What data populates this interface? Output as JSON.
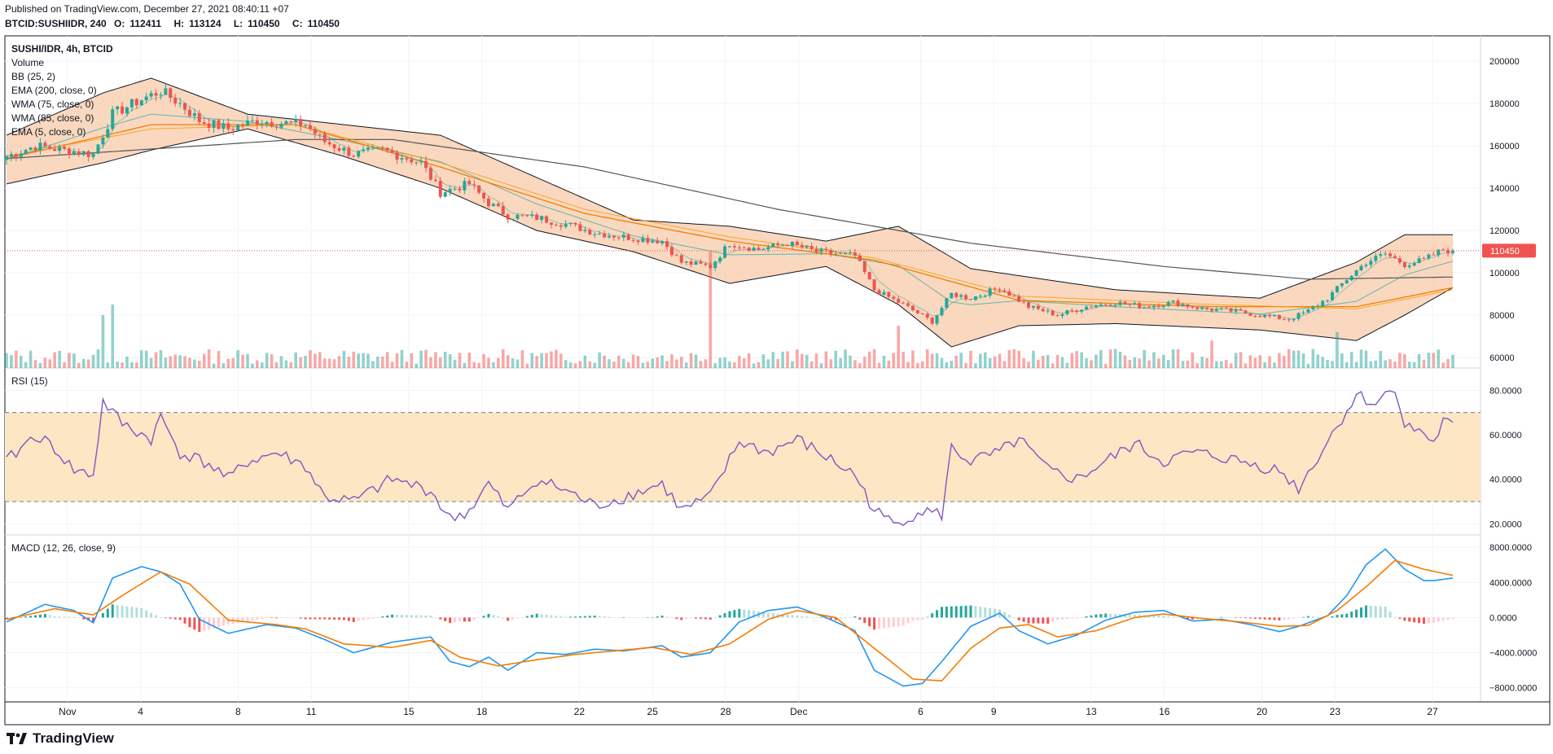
{
  "header": {
    "published": "Published on TradingView.com, December 27, 2021 08:40:11 +07",
    "symbol_line": "BTCID:SUSHIIDR, 240",
    "ohlc": [
      {
        "k": "O:",
        "v": "112411"
      },
      {
        "k": "H:",
        "v": "113124"
      },
      {
        "k": "L:",
        "v": "110450"
      },
      {
        "k": "C:",
        "v": "110450"
      }
    ]
  },
  "legend": {
    "title": "SUSHI/IDR, 4h, BTCID",
    "items": [
      "Volume",
      "BB (25, 2)",
      "EMA (200, close, 0)",
      "WMA (75, close, 0)",
      "WMA (85, close, 0)",
      "EMA (5, close, 0)"
    ]
  },
  "rsi_label": "RSI (15)",
  "macd_label": "MACD (12, 26, close, 9)",
  "last_price_label": "110450",
  "footer": {
    "brand": "TradingView"
  },
  "colors": {
    "up": "#26a69a",
    "down": "#ef5350",
    "bb_fill": "#f7cbaa",
    "rsi_band": "#fde6c4",
    "rsi_line": "#7e57c2",
    "macd": "#2196f3",
    "signal": "#f57c00",
    "ema200": "#555555"
  },
  "chart_data": [
    {
      "type": "candlestick",
      "title": "SUSHI/IDR, 4h, BTCID",
      "ylim": [
        55000,
        212000
      ],
      "y_ticks": [
        200000,
        180000,
        160000,
        140000,
        120000,
        100000,
        80000,
        60000
      ],
      "y_tick_labels": [
        "200000",
        "180000",
        "160000",
        "140000",
        "120000",
        "100000",
        "80000",
        "60000"
      ],
      "x_ticks": [
        "Nov",
        "4",
        "8",
        "11",
        "15",
        "18",
        "22",
        "25",
        "28",
        "Dec",
        "6",
        "9",
        "13",
        "16",
        "20",
        "23",
        "27"
      ],
      "close_anchors": [
        [
          0,
          155000
        ],
        [
          6,
          160000
        ],
        [
          12,
          158000
        ],
        [
          18,
          156000
        ],
        [
          22,
          175000
        ],
        [
          28,
          182000
        ],
        [
          32,
          186000
        ],
        [
          36,
          180000
        ],
        [
          40,
          172000
        ],
        [
          46,
          168000
        ],
        [
          52,
          172000
        ],
        [
          56,
          171000
        ],
        [
          62,
          170000
        ],
        [
          66,
          162000
        ],
        [
          72,
          156000
        ],
        [
          78,
          158000
        ],
        [
          86,
          152000
        ],
        [
          90,
          138000
        ],
        [
          96,
          142000
        ],
        [
          100,
          133000
        ],
        [
          104,
          127000
        ],
        [
          110,
          126000
        ],
        [
          116,
          123000
        ],
        [
          122,
          119000
        ],
        [
          128,
          117000
        ],
        [
          136,
          115000
        ],
        [
          140,
          105000
        ],
        [
          146,
          103000
        ],
        [
          150,
          114000
        ],
        [
          156,
          111000
        ],
        [
          162,
          114000
        ],
        [
          168,
          110000
        ],
        [
          176,
          108000
        ],
        [
          180,
          92000
        ],
        [
          186,
          85000
        ],
        [
          192,
          77000
        ],
        [
          196,
          90000
        ],
        [
          200,
          88000
        ],
        [
          206,
          93000
        ],
        [
          212,
          84000
        ],
        [
          218,
          80000
        ],
        [
          224,
          84000
        ],
        [
          230,
          86000
        ],
        [
          236,
          84000
        ],
        [
          242,
          86000
        ],
        [
          248,
          83000
        ],
        [
          254,
          82000
        ],
        [
          260,
          80000
        ],
        [
          266,
          78000
        ],
        [
          270,
          82000
        ],
        [
          274,
          88000
        ],
        [
          278,
          97000
        ],
        [
          282,
          105000
        ],
        [
          286,
          109000
        ],
        [
          290,
          104000
        ],
        [
          294,
          106000
        ],
        [
          298,
          111000
        ],
        [
          300,
          110450
        ]
      ],
      "ema200": [
        [
          0,
          154000
        ],
        [
          40,
          160000
        ],
        [
          60,
          163000
        ],
        [
          80,
          163000
        ],
        [
          120,
          150000
        ],
        [
          160,
          130000
        ],
        [
          200,
          114000
        ],
        [
          240,
          103000
        ],
        [
          270,
          97000
        ],
        [
          300,
          98000
        ]
      ],
      "wma75": [
        [
          0,
          154000
        ],
        [
          30,
          170000
        ],
        [
          60,
          170000
        ],
        [
          90,
          150000
        ],
        [
          120,
          128000
        ],
        [
          150,
          115000
        ],
        [
          180,
          106000
        ],
        [
          210,
          87000
        ],
        [
          250,
          84000
        ],
        [
          280,
          84000
        ],
        [
          300,
          93000
        ]
      ],
      "wma85": [
        [
          0,
          155000
        ],
        [
          30,
          168000
        ],
        [
          60,
          170000
        ],
        [
          90,
          152000
        ],
        [
          120,
          130000
        ],
        [
          150,
          117000
        ],
        [
          180,
          107000
        ],
        [
          210,
          89000
        ],
        [
          250,
          85000
        ],
        [
          280,
          83000
        ],
        [
          300,
          92000
        ]
      ],
      "ema5_offset": "ema200",
      "bb_upper": [
        [
          0,
          165000
        ],
        [
          20,
          185000
        ],
        [
          30,
          192000
        ],
        [
          50,
          175000
        ],
        [
          70,
          170000
        ],
        [
          90,
          165000
        ],
        [
          110,
          145000
        ],
        [
          130,
          125000
        ],
        [
          150,
          122000
        ],
        [
          170,
          115000
        ],
        [
          185,
          122000
        ],
        [
          200,
          102000
        ],
        [
          230,
          92000
        ],
        [
          260,
          88000
        ],
        [
          280,
          105000
        ],
        [
          290,
          118000
        ],
        [
          300,
          118000
        ]
      ],
      "bb_lower": [
        [
          0,
          142000
        ],
        [
          20,
          152000
        ],
        [
          30,
          158000
        ],
        [
          50,
          168000
        ],
        [
          70,
          155000
        ],
        [
          90,
          140000
        ],
        [
          110,
          120000
        ],
        [
          130,
          110000
        ],
        [
          150,
          95000
        ],
        [
          170,
          103000
        ],
        [
          185,
          85000
        ],
        [
          196,
          65000
        ],
        [
          210,
          75000
        ],
        [
          230,
          76000
        ],
        [
          260,
          73000
        ],
        [
          280,
          68000
        ],
        [
          290,
          80000
        ],
        [
          300,
          93000
        ]
      ],
      "volume_spikes": [
        [
          20,
          80000
        ],
        [
          22,
          85000
        ],
        [
          90,
          60000
        ],
        [
          146,
          110000
        ],
        [
          185,
          75000
        ],
        [
          230,
          64000
        ],
        [
          250,
          68000
        ],
        [
          276,
          72000
        ]
      ]
    },
    {
      "type": "line",
      "title": "RSI (15)",
      "ylim": [
        15,
        90
      ],
      "band": [
        30,
        70
      ],
      "y_ticks": [
        80,
        60,
        40,
        20
      ],
      "y_tick_labels": [
        "80.0000",
        "60.0000",
        "40.0000",
        "20.0000"
      ],
      "values_anchors": [
        [
          0,
          48
        ],
        [
          6,
          60
        ],
        [
          10,
          54
        ],
        [
          14,
          44
        ],
        [
          18,
          42
        ],
        [
          20,
          75
        ],
        [
          24,
          65
        ],
        [
          30,
          58
        ],
        [
          32,
          68
        ],
        [
          36,
          52
        ],
        [
          42,
          47
        ],
        [
          46,
          40
        ],
        [
          50,
          48
        ],
        [
          56,
          52
        ],
        [
          62,
          46
        ],
        [
          66,
          32
        ],
        [
          72,
          30
        ],
        [
          80,
          40
        ],
        [
          88,
          35
        ],
        [
          92,
          22
        ],
        [
          96,
          26
        ],
        [
          100,
          38
        ],
        [
          104,
          26
        ],
        [
          110,
          40
        ],
        [
          116,
          35
        ],
        [
          122,
          28
        ],
        [
          128,
          32
        ],
        [
          136,
          38
        ],
        [
          140,
          26
        ],
        [
          146,
          32
        ],
        [
          152,
          57
        ],
        [
          158,
          52
        ],
        [
          164,
          58
        ],
        [
          170,
          50
        ],
        [
          176,
          42
        ],
        [
          180,
          26
        ],
        [
          184,
          20
        ],
        [
          190,
          26
        ],
        [
          194,
          24
        ],
        [
          196,
          54
        ],
        [
          200,
          48
        ],
        [
          206,
          52
        ],
        [
          210,
          58
        ],
        [
          216,
          44
        ],
        [
          222,
          40
        ],
        [
          228,
          48
        ],
        [
          234,
          56
        ],
        [
          240,
          48
        ],
        [
          246,
          52
        ],
        [
          252,
          50
        ],
        [
          258,
          47
        ],
        [
          264,
          44
        ],
        [
          268,
          36
        ],
        [
          272,
          50
        ],
        [
          276,
          64
        ],
        [
          280,
          78
        ],
        [
          284,
          74
        ],
        [
          288,
          82
        ],
        [
          290,
          64
        ],
        [
          294,
          61
        ],
        [
          296,
          56
        ],
        [
          298,
          66
        ],
        [
          300,
          64
        ]
      ]
    },
    {
      "type": "line",
      "title": "MACD (12, 26, close, 9)",
      "ylim": [
        -9600,
        9400
      ],
      "y_ticks": [
        8000,
        4000,
        0,
        -4000,
        -8000
      ],
      "y_tick_labels": [
        "8000.0000",
        "4000.0000",
        "0.0000",
        "−4000.0000",
        "−8000.0000"
      ],
      "macd_anchors": [
        [
          0,
          -500
        ],
        [
          8,
          1500
        ],
        [
          14,
          800
        ],
        [
          18,
          -600
        ],
        [
          22,
          4500
        ],
        [
          28,
          5800
        ],
        [
          32,
          5200
        ],
        [
          36,
          3800
        ],
        [
          40,
          -200
        ],
        [
          46,
          -1800
        ],
        [
          54,
          -800
        ],
        [
          60,
          -1200
        ],
        [
          66,
          -2500
        ],
        [
          72,
          -4000
        ],
        [
          80,
          -2800
        ],
        [
          88,
          -2200
        ],
        [
          92,
          -5000
        ],
        [
          96,
          -5600
        ],
        [
          100,
          -4500
        ],
        [
          104,
          -6000
        ],
        [
          110,
          -4000
        ],
        [
          116,
          -4200
        ],
        [
          122,
          -3600
        ],
        [
          128,
          -3800
        ],
        [
          136,
          -3200
        ],
        [
          140,
          -4500
        ],
        [
          146,
          -4000
        ],
        [
          152,
          -500
        ],
        [
          158,
          800
        ],
        [
          164,
          1200
        ],
        [
          170,
          0
        ],
        [
          176,
          -1500
        ],
        [
          180,
          -6000
        ],
        [
          186,
          -7800
        ],
        [
          190,
          -7500
        ],
        [
          194,
          -5000
        ],
        [
          200,
          -1000
        ],
        [
          206,
          500
        ],
        [
          210,
          -1500
        ],
        [
          216,
          -3000
        ],
        [
          222,
          -2000
        ],
        [
          228,
          -300
        ],
        [
          234,
          600
        ],
        [
          240,
          800
        ],
        [
          246,
          -400
        ],
        [
          252,
          -200
        ],
        [
          258,
          -800
        ],
        [
          264,
          -1600
        ],
        [
          268,
          -1000
        ],
        [
          274,
          200
        ],
        [
          278,
          2500
        ],
        [
          282,
          6000
        ],
        [
          286,
          7800
        ],
        [
          290,
          5500
        ],
        [
          294,
          4200
        ],
        [
          296,
          4200
        ],
        [
          300,
          4500
        ]
      ],
      "signal_anchors": [
        [
          0,
          -200
        ],
        [
          10,
          1000
        ],
        [
          18,
          300
        ],
        [
          24,
          2500
        ],
        [
          32,
          5200
        ],
        [
          38,
          3800
        ],
        [
          46,
          -300
        ],
        [
          56,
          -800
        ],
        [
          62,
          -1300
        ],
        [
          70,
          -3000
        ],
        [
          80,
          -3400
        ],
        [
          88,
          -2600
        ],
        [
          94,
          -4500
        ],
        [
          102,
          -5500
        ],
        [
          110,
          -4800
        ],
        [
          118,
          -4200
        ],
        [
          126,
          -3800
        ],
        [
          134,
          -3400
        ],
        [
          142,
          -4200
        ],
        [
          150,
          -3000
        ],
        [
          158,
          -200
        ],
        [
          164,
          800
        ],
        [
          172,
          0
        ],
        [
          180,
          -3500
        ],
        [
          188,
          -7000
        ],
        [
          194,
          -7200
        ],
        [
          200,
          -3500
        ],
        [
          206,
          -1200
        ],
        [
          212,
          -800
        ],
        [
          218,
          -2200
        ],
        [
          226,
          -1500
        ],
        [
          234,
          0
        ],
        [
          240,
          400
        ],
        [
          248,
          -100
        ],
        [
          256,
          -500
        ],
        [
          264,
          -1000
        ],
        [
          270,
          -900
        ],
        [
          276,
          800
        ],
        [
          282,
          3500
        ],
        [
          288,
          6500
        ],
        [
          294,
          5500
        ],
        [
          300,
          4800
        ]
      ]
    }
  ]
}
